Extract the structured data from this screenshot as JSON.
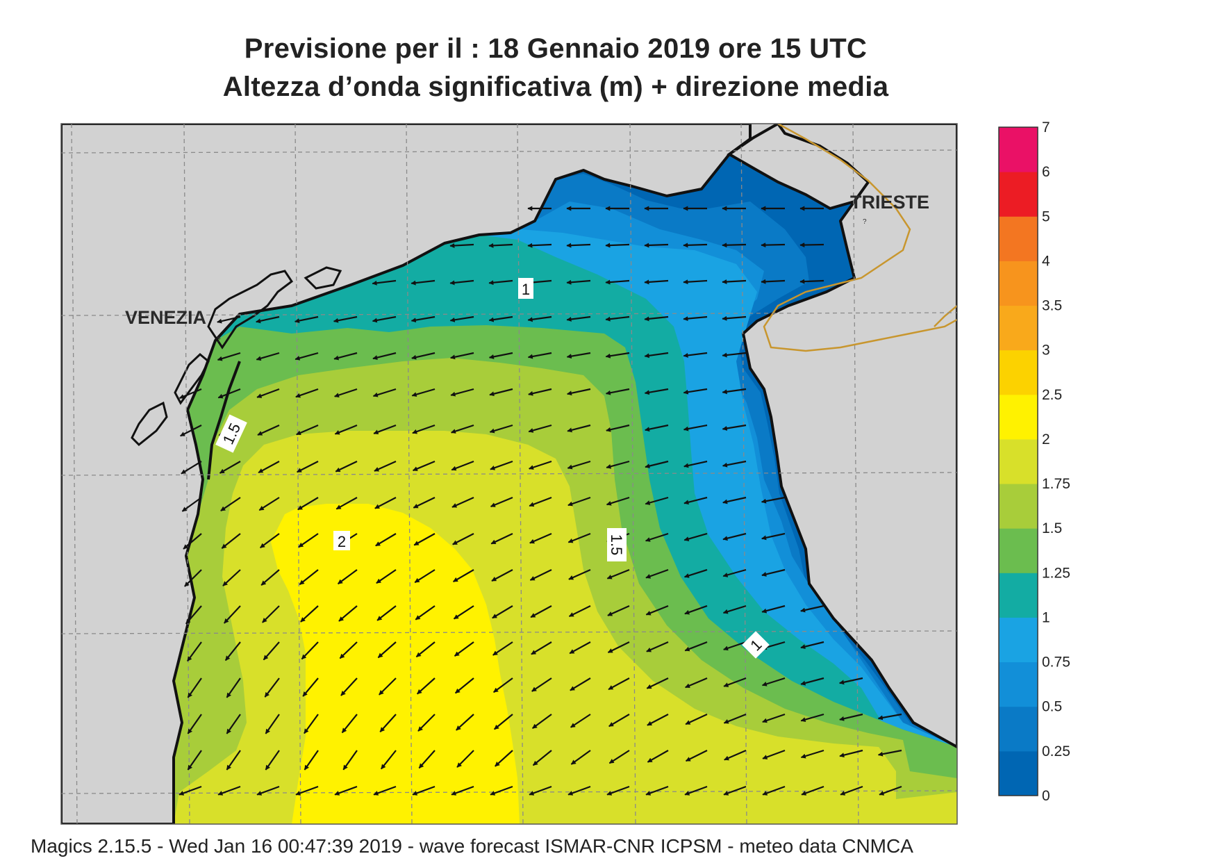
{
  "title": {
    "line1": "Previsione per il  :  18  Gennaio  2019   ore 15 UTC",
    "line2": "Altezza d’onda significativa (m) + direzione media"
  },
  "cities": [
    {
      "name": "VENEZIA"
    },
    {
      "name": "TRIESTE"
    }
  ],
  "contour_labels": [
    "1",
    "1.5",
    "2",
    "1.5",
    "1"
  ],
  "colors": {
    "land": "#d2d2d2",
    "coast": "#111111",
    "border": "#c8962e"
  },
  "legend": {
    "title": "",
    "bands": [
      {
        "from": 0,
        "to": 0.25,
        "color": "#0066b3"
      },
      {
        "from": 0.25,
        "to": 0.5,
        "color": "#0a7ac6"
      },
      {
        "from": 0.5,
        "to": 0.75,
        "color": "#128fd8"
      },
      {
        "from": 0.75,
        "to": 1,
        "color": "#1aa3e3"
      },
      {
        "from": 1,
        "to": 1.25,
        "color": "#13aca3"
      },
      {
        "from": 1.25,
        "to": 1.5,
        "color": "#6bbd4f"
      },
      {
        "from": 1.5,
        "to": 1.75,
        "color": "#a8cd3a"
      },
      {
        "from": 1.75,
        "to": 2,
        "color": "#d8e02a"
      },
      {
        "from": 2,
        "to": 2.5,
        "color": "#fff200"
      },
      {
        "from": 2.5,
        "to": 3,
        "color": "#fcd200"
      },
      {
        "from": 3,
        "to": 3.5,
        "color": "#f9a91b"
      },
      {
        "from": 3.5,
        "to": 4,
        "color": "#f7941d"
      },
      {
        "from": 4,
        "to": 5,
        "color": "#f37621"
      },
      {
        "from": 5,
        "to": 6,
        "color": "#ec1c24"
      },
      {
        "from": 6,
        "to": 7,
        "color": "#ea1166"
      }
    ],
    "tick_labels": [
      "0",
      "0.25",
      "0.5",
      "0.75",
      "1",
      "1.25",
      "1.5",
      "1.75",
      "2",
      "2.5",
      "3",
      "3.5",
      "4",
      "5",
      "6",
      "7"
    ]
  },
  "footer": "Magics 2.15.5 - Wed Jan 16 00:47:39 2019 - wave forecast  ISMAR-CNR  ICPSM - meteo data   CNMCA"
}
